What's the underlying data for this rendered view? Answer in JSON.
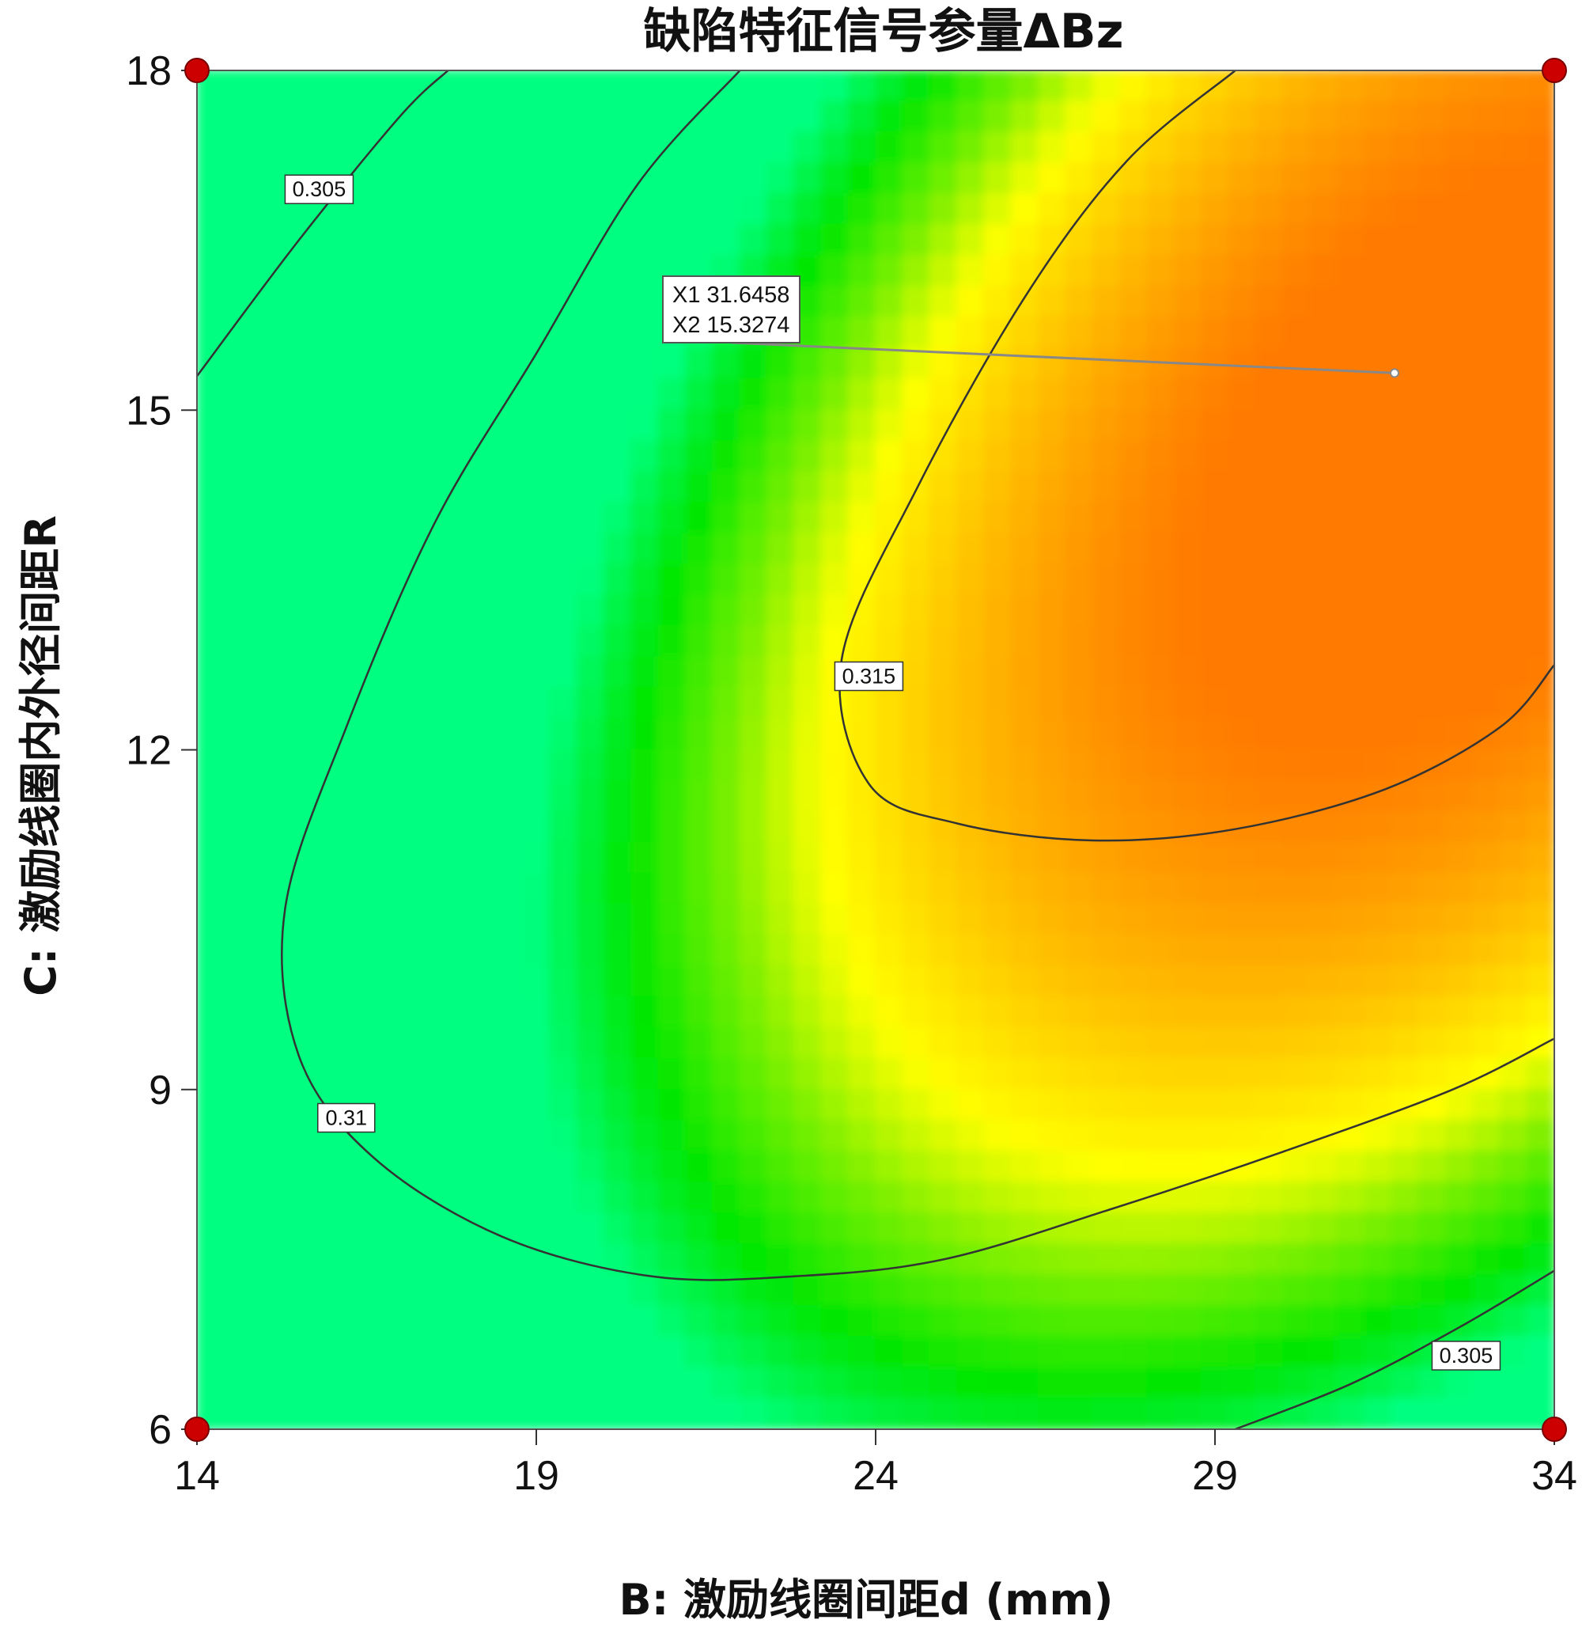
{
  "chart_data": {
    "type": "contour",
    "title": "缺陷特征信号参量ΔBz",
    "xlabel": "B: 激励线圈间距d (mm)",
    "ylabel": "C: 激励线圈内外径间距R",
    "xlim": [
      14,
      34
    ],
    "ylim": [
      6,
      18
    ],
    "x_ticks": [
      "14",
      "19",
      "24",
      "29",
      "34"
    ],
    "y_ticks": [
      "6",
      "9",
      "12",
      "15",
      "18"
    ],
    "x_tick_values": [
      14,
      19,
      24,
      29,
      34
    ],
    "y_tick_values": [
      6,
      9,
      12,
      15,
      18
    ],
    "contour_levels": [
      0.305,
      0.31,
      0.315
    ],
    "contours": [
      {
        "level": 0.305,
        "label": "0.305",
        "points": [
          [
            14.0,
            15.3
          ],
          [
            15.5,
            16.5
          ],
          [
            17.0,
            17.6
          ],
          [
            17.7,
            18.0
          ]
        ]
      },
      {
        "level": 0.305,
        "label": "0.305",
        "points": [
          [
            29.3,
            6.0
          ],
          [
            31.0,
            6.4
          ],
          [
            32.6,
            6.9
          ],
          [
            34.0,
            7.4
          ]
        ]
      },
      {
        "level": 0.31,
        "label": "0.31",
        "points": [
          [
            22.0,
            18.0
          ],
          [
            20.5,
            17.0
          ],
          [
            19.0,
            15.5
          ],
          [
            17.5,
            14.0
          ],
          [
            16.2,
            12.2
          ],
          [
            15.3,
            10.6
          ],
          [
            15.5,
            9.3
          ],
          [
            16.6,
            8.4
          ],
          [
            18.5,
            7.7
          ],
          [
            20.7,
            7.35
          ],
          [
            22.8,
            7.35
          ],
          [
            25.0,
            7.5
          ],
          [
            27.5,
            7.95
          ],
          [
            30.0,
            8.45
          ],
          [
            32.5,
            9.0
          ],
          [
            34.0,
            9.45
          ]
        ]
      },
      {
        "level": 0.315,
        "label": "0.315",
        "points": [
          [
            29.3,
            18.0
          ],
          [
            27.7,
            17.2
          ],
          [
            26.2,
            16.0
          ],
          [
            24.6,
            14.3
          ],
          [
            23.5,
            12.8
          ],
          [
            23.9,
            11.7
          ],
          [
            25.2,
            11.35
          ],
          [
            27.2,
            11.2
          ],
          [
            29.3,
            11.3
          ],
          [
            31.5,
            11.65
          ],
          [
            33.2,
            12.2
          ],
          [
            34.0,
            12.75
          ]
        ]
      }
    ],
    "design_points": [
      [
        14,
        18
      ],
      [
        34,
        18
      ],
      [
        14,
        6
      ],
      [
        34,
        6
      ]
    ],
    "annotation": {
      "x_text": "X1 31.6458",
      "y_text": "X2 15.3274",
      "x": 31.6458,
      "y": 15.3274
    },
    "max_region": {
      "x": 32.5,
      "y": 14.6
    },
    "colors": {
      "low": "#00ff80",
      "mid_low": "#00e600",
      "mid": "#ffff00",
      "high": "#ff7a00",
      "point": "#cc0000",
      "contour": "#333333",
      "leader": "#888888"
    }
  }
}
